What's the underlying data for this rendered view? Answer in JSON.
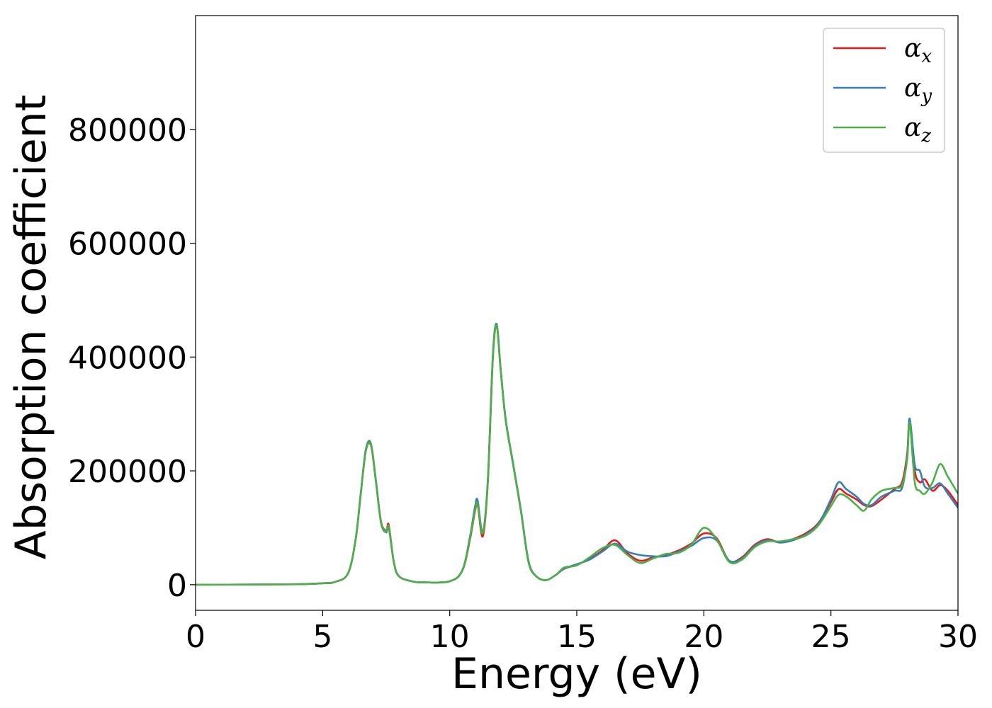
{
  "chart_data": {
    "type": "line",
    "xlabel": "Energy (eV)",
    "ylabel": "Absorption coefficient",
    "xlim": [
      0,
      30
    ],
    "ylim": [
      -45000,
      1000000
    ],
    "xticks": [
      0,
      5,
      10,
      15,
      20,
      25,
      30
    ],
    "yticks": [
      0,
      200000,
      400000,
      600000,
      800000
    ],
    "xtick_labels": [
      "0",
      "5",
      "10",
      "15",
      "20",
      "25",
      "30"
    ],
    "ytick_labels": [
      "0",
      "200000",
      "400000",
      "600000",
      "800000"
    ],
    "grid": false,
    "legend_position": "top-right",
    "series": [
      {
        "name": "αx",
        "subscript": "x",
        "color": "#e41a1c",
        "x": [
          0,
          2,
          4,
          5,
          5.5,
          6,
          6.3,
          6.5,
          6.7,
          6.9,
          7.1,
          7.3,
          7.5,
          7.6,
          7.8,
          8,
          8.5,
          9,
          10,
          10.5,
          10.8,
          11,
          11.1,
          11.3,
          11.5,
          11.7,
          11.85,
          12,
          12.2,
          12.5,
          12.8,
          13.1,
          13.4,
          13.8,
          14.2,
          14.5,
          15,
          15.5,
          16,
          16.5,
          17,
          17.5,
          18,
          18.5,
          19,
          19.5,
          20,
          20.5,
          21,
          21.5,
          22,
          22.5,
          23,
          23.5,
          24,
          24.5,
          25,
          25.3,
          25.6,
          26,
          26.3,
          26.6,
          27,
          27.5,
          27.8,
          28,
          28.1,
          28.3,
          28.5,
          28.7,
          29,
          29.3,
          29.6,
          30
        ],
        "y": [
          0,
          200,
          800,
          2500,
          5000,
          20000,
          80000,
          160000,
          235000,
          245000,
          180000,
          110000,
          95000,
          105000,
          40000,
          15000,
          6000,
          4000,
          6000,
          25000,
          80000,
          130000,
          140000,
          85000,
          180000,
          400000,
          455000,
          380000,
          290000,
          210000,
          130000,
          40000,
          15000,
          8000,
          18000,
          28000,
          35000,
          45000,
          60000,
          78000,
          55000,
          42000,
          48000,
          52000,
          60000,
          72000,
          90000,
          82000,
          42000,
          48000,
          70000,
          80000,
          74000,
          80000,
          90000,
          108000,
          145000,
          168000,
          160000,
          150000,
          140000,
          138000,
          150000,
          168000,
          180000,
          230000,
          290000,
          200000,
          180000,
          185000,
          165000,
          175000,
          165000,
          140000
        ]
      },
      {
        "name": "αy",
        "subscript": "y",
        "color": "#377eb8",
        "x": [
          0,
          2,
          4,
          5,
          5.5,
          6,
          6.3,
          6.5,
          6.7,
          6.9,
          7.1,
          7.3,
          7.5,
          7.6,
          7.8,
          8,
          8.5,
          9,
          10,
          10.5,
          10.8,
          11,
          11.1,
          11.3,
          11.5,
          11.7,
          11.85,
          12,
          12.2,
          12.5,
          12.8,
          13.1,
          13.4,
          13.8,
          14.2,
          14.5,
          15,
          15.5,
          16,
          16.5,
          17,
          17.5,
          18,
          18.5,
          19,
          19.5,
          20,
          20.5,
          21,
          21.5,
          22,
          22.5,
          23,
          23.5,
          24,
          24.5,
          25,
          25.3,
          25.6,
          26,
          26.3,
          26.6,
          27,
          27.5,
          27.8,
          28,
          28.1,
          28.3,
          28.5,
          28.7,
          29,
          29.3,
          29.6,
          30
        ],
        "y": [
          0,
          200,
          800,
          2500,
          5000,
          20000,
          80000,
          160000,
          238000,
          248000,
          182000,
          108000,
          92000,
          100000,
          40000,
          15000,
          6000,
          4000,
          6000,
          26000,
          85000,
          138000,
          148000,
          92000,
          185000,
          405000,
          458000,
          382000,
          292000,
          212000,
          132000,
          42000,
          15000,
          8000,
          18000,
          28000,
          36000,
          44000,
          58000,
          72000,
          58000,
          52000,
          50000,
          50000,
          58000,
          68000,
          82000,
          78000,
          42000,
          46000,
          68000,
          78000,
          74000,
          78000,
          88000,
          106000,
          150000,
          180000,
          168000,
          155000,
          142000,
          140000,
          155000,
          165000,
          170000,
          225000,
          292000,
          210000,
          200000,
          172000,
          170000,
          178000,
          160000,
          135000
        ]
      },
      {
        "name": "αz",
        "subscript": "z",
        "color": "#4daf4a",
        "x": [
          0,
          2,
          4,
          5,
          5.5,
          6,
          6.3,
          6.5,
          6.7,
          6.9,
          7.1,
          7.3,
          7.5,
          7.6,
          7.8,
          8,
          8.5,
          9,
          10,
          10.5,
          10.8,
          11,
          11.1,
          11.3,
          11.5,
          11.7,
          11.85,
          12,
          12.2,
          12.5,
          12.8,
          13.1,
          13.4,
          13.8,
          14.2,
          14.5,
          15,
          15.5,
          16,
          16.5,
          17,
          17.5,
          18,
          18.5,
          19,
          19.5,
          20,
          20.5,
          21,
          21.5,
          22,
          22.5,
          23,
          23.5,
          24,
          24.5,
          25,
          25.3,
          25.6,
          26,
          26.3,
          26.6,
          27,
          27.5,
          27.8,
          28,
          28.1,
          28.3,
          28.5,
          28.7,
          29,
          29.3,
          29.6,
          30
        ],
        "y": [
          0,
          200,
          800,
          2500,
          5000,
          20000,
          80000,
          160000,
          236000,
          246000,
          180000,
          108000,
          94000,
          102000,
          40000,
          15000,
          6000,
          4000,
          6000,
          25000,
          82000,
          132000,
          142000,
          90000,
          182000,
          402000,
          456000,
          380000,
          290000,
          210000,
          130000,
          40000,
          15000,
          8000,
          18000,
          30000,
          34000,
          48000,
          64000,
          70000,
          52000,
          38000,
          46000,
          54000,
          56000,
          70000,
          100000,
          80000,
          40000,
          44000,
          66000,
          76000,
          76000,
          80000,
          86000,
          104000,
          138000,
          158000,
          155000,
          140000,
          130000,
          150000,
          165000,
          170000,
          175000,
          220000,
          285000,
          180000,
          165000,
          160000,
          180000,
          212000,
          190000,
          160000
        ]
      }
    ]
  }
}
